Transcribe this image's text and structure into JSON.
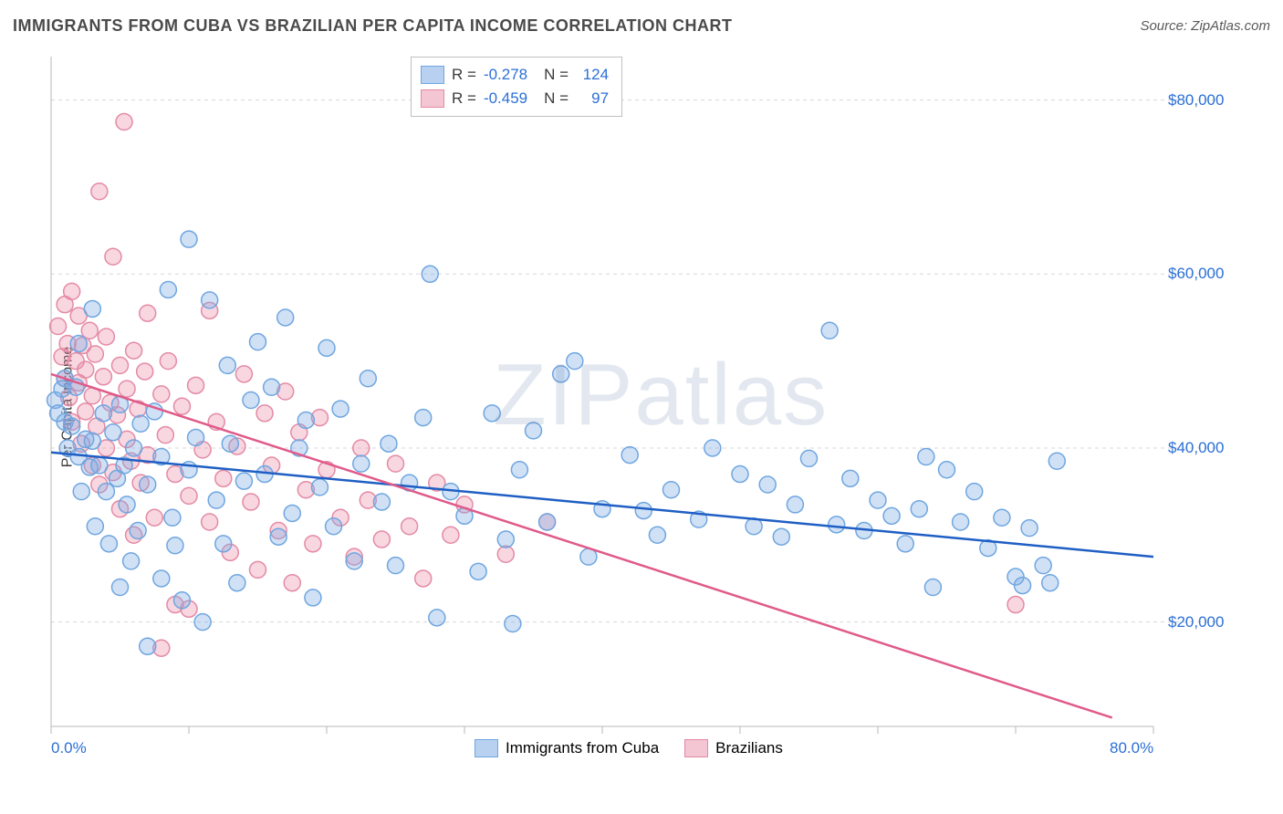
{
  "header": {
    "title": "IMMIGRANTS FROM CUBA VS BRAZILIAN PER CAPITA INCOME CORRELATION CHART",
    "source": "Source: ZipAtlas.com"
  },
  "watermark": "ZIPatlas",
  "chart": {
    "type": "scatter",
    "ylabel": "Per Capita Income",
    "xlim": [
      0,
      80
    ],
    "ylim": [
      8000,
      85000
    ],
    "x_ticks_pct": [
      0,
      10,
      20,
      30,
      40,
      50,
      60,
      70,
      80
    ],
    "x_tick_labels_visible": {
      "0": "0.0%",
      "80": "80.0%"
    },
    "y_gridlines": [
      20000,
      40000,
      60000,
      80000
    ],
    "y_tick_labels": {
      "20000": "$20,000",
      "40000": "$40,000",
      "60000": "$60,000",
      "80000": "$80,000"
    },
    "background_color": "#ffffff",
    "grid_color": "#d8d8d8",
    "grid_dash": "4,4",
    "axis_color": "#b8b8b8",
    "tick_color": "#b8b8b8",
    "axis_label_color": "#2b6fd6",
    "marker_radius": 9,
    "marker_stroke_width": 1.5,
    "trend_line_width": 2.5,
    "series": [
      {
        "name": "Immigrants from Cuba",
        "fill_color": "rgba(120,170,230,0.35)",
        "stroke_color": "#6fa6e0",
        "swatch_fill": "#b8d1f0",
        "swatch_border": "#6fa6e0",
        "trend_color": "#1f5fc4",
        "R": "-0.278",
        "N": "124",
        "trend": {
          "x1": 0,
          "y1": 39500,
          "x2": 80,
          "y2": 27500
        },
        "points": [
          [
            0.3,
            45500
          ],
          [
            0.5,
            44000
          ],
          [
            0.8,
            46800
          ],
          [
            1,
            43000
          ],
          [
            1,
            48000
          ],
          [
            1.2,
            40000
          ],
          [
            1.5,
            42500
          ],
          [
            1.8,
            47000
          ],
          [
            2,
            39000
          ],
          [
            2,
            52000
          ],
          [
            2.2,
            35000
          ],
          [
            2.5,
            41000
          ],
          [
            2.8,
            37800
          ],
          [
            3,
            40800
          ],
          [
            3,
            56000
          ],
          [
            3.2,
            31000
          ],
          [
            3.5,
            38000
          ],
          [
            3.8,
            44000
          ],
          [
            4,
            35000
          ],
          [
            4.2,
            29000
          ],
          [
            4.5,
            41800
          ],
          [
            4.8,
            36500
          ],
          [
            5,
            45000
          ],
          [
            5,
            24000
          ],
          [
            5.3,
            38000
          ],
          [
            5.5,
            33500
          ],
          [
            5.8,
            27000
          ],
          [
            6,
            40000
          ],
          [
            6.3,
            30500
          ],
          [
            6.5,
            42800
          ],
          [
            7,
            17200
          ],
          [
            7,
            35800
          ],
          [
            7.5,
            44200
          ],
          [
            8,
            25000
          ],
          [
            8,
            39000
          ],
          [
            8.5,
            58200
          ],
          [
            8.8,
            32000
          ],
          [
            9,
            28800
          ],
          [
            9.5,
            22500
          ],
          [
            10,
            64000
          ],
          [
            10,
            37500
          ],
          [
            10.5,
            41200
          ],
          [
            11,
            20000
          ],
          [
            11.5,
            57000
          ],
          [
            12,
            34000
          ],
          [
            12.5,
            29000
          ],
          [
            12.8,
            49500
          ],
          [
            13,
            40500
          ],
          [
            13.5,
            24500
          ],
          [
            14,
            36200
          ],
          [
            14.5,
            45500
          ],
          [
            15,
            52200
          ],
          [
            15.5,
            37000
          ],
          [
            16,
            47000
          ],
          [
            16.5,
            29800
          ],
          [
            17,
            55000
          ],
          [
            17.5,
            32500
          ],
          [
            18,
            40000
          ],
          [
            18.5,
            43200
          ],
          [
            19,
            22800
          ],
          [
            19.5,
            35500
          ],
          [
            20,
            51500
          ],
          [
            20.5,
            31000
          ],
          [
            21,
            44500
          ],
          [
            22,
            27000
          ],
          [
            22.5,
            38200
          ],
          [
            23,
            48000
          ],
          [
            24,
            33800
          ],
          [
            24.5,
            40500
          ],
          [
            25,
            26500
          ],
          [
            26,
            36000
          ],
          [
            27,
            43500
          ],
          [
            27.5,
            60000
          ],
          [
            28,
            20500
          ],
          [
            29,
            35000
          ],
          [
            30,
            32200
          ],
          [
            31,
            25800
          ],
          [
            32,
            44000
          ],
          [
            33,
            29500
          ],
          [
            33.5,
            19800
          ],
          [
            34,
            37500
          ],
          [
            35,
            42000
          ],
          [
            36,
            31500
          ],
          [
            37,
            48500
          ],
          [
            38,
            50000
          ],
          [
            39,
            27500
          ],
          [
            40,
            33000
          ],
          [
            42,
            39200
          ],
          [
            43,
            32800
          ],
          [
            44,
            30000
          ],
          [
            45,
            35200
          ],
          [
            47,
            31800
          ],
          [
            48,
            40000
          ],
          [
            50,
            37000
          ],
          [
            51,
            31000
          ],
          [
            52,
            35800
          ],
          [
            53,
            29800
          ],
          [
            54,
            33500
          ],
          [
            55,
            38800
          ],
          [
            56.5,
            53500
          ],
          [
            57,
            31200
          ],
          [
            58,
            36500
          ],
          [
            59,
            30500
          ],
          [
            60,
            34000
          ],
          [
            61,
            32200
          ],
          [
            62,
            29000
          ],
          [
            63,
            33000
          ],
          [
            63.5,
            39000
          ],
          [
            64,
            24000
          ],
          [
            65,
            37500
          ],
          [
            66,
            31500
          ],
          [
            67,
            35000
          ],
          [
            68,
            28500
          ],
          [
            69,
            32000
          ],
          [
            70,
            25200
          ],
          [
            70.5,
            24200
          ],
          [
            71,
            30800
          ],
          [
            72,
            26500
          ],
          [
            72.5,
            24500
          ],
          [
            73,
            38500
          ]
        ]
      },
      {
        "name": "Brazilians",
        "fill_color": "rgba(235,140,165,0.35)",
        "stroke_color": "#e48aa5",
        "swatch_fill": "#f4c5d2",
        "swatch_border": "#e48aa5",
        "trend_color": "#e05a8a",
        "R": "-0.459",
        "N": "97",
        "trend": {
          "x1": 0,
          "y1": 48500,
          "x2": 77,
          "y2": 9000
        },
        "points": [
          [
            0.5,
            54000
          ],
          [
            0.8,
            50500
          ],
          [
            1,
            56500
          ],
          [
            1,
            48000
          ],
          [
            1.2,
            52000
          ],
          [
            1.3,
            45800
          ],
          [
            1.5,
            58000
          ],
          [
            1.5,
            43000
          ],
          [
            1.8,
            50000
          ],
          [
            2,
            55200
          ],
          [
            2,
            47500
          ],
          [
            2.2,
            40500
          ],
          [
            2.3,
            51800
          ],
          [
            2.5,
            44200
          ],
          [
            2.5,
            49000
          ],
          [
            2.8,
            53500
          ],
          [
            3,
            46000
          ],
          [
            3,
            38000
          ],
          [
            3.2,
            50800
          ],
          [
            3.3,
            42500
          ],
          [
            3.5,
            69500
          ],
          [
            3.5,
            35800
          ],
          [
            3.8,
            48200
          ],
          [
            4,
            52800
          ],
          [
            4,
            40000
          ],
          [
            4.3,
            45200
          ],
          [
            4.5,
            37200
          ],
          [
            4.5,
            62000
          ],
          [
            4.8,
            43800
          ],
          [
            5,
            49500
          ],
          [
            5,
            33000
          ],
          [
            5.3,
            77500
          ],
          [
            5.5,
            41000
          ],
          [
            5.5,
            46800
          ],
          [
            5.8,
            38500
          ],
          [
            6,
            51200
          ],
          [
            6,
            30000
          ],
          [
            6.3,
            44500
          ],
          [
            6.5,
            36000
          ],
          [
            6.8,
            48800
          ],
          [
            7,
            55500
          ],
          [
            7,
            39200
          ],
          [
            7.5,
            32000
          ],
          [
            8,
            46200
          ],
          [
            8,
            17000
          ],
          [
            8.3,
            41500
          ],
          [
            8.5,
            50000
          ],
          [
            9,
            37000
          ],
          [
            9,
            22000
          ],
          [
            9.5,
            44800
          ],
          [
            10,
            34500
          ],
          [
            10,
            21500
          ],
          [
            10.5,
            47200
          ],
          [
            11,
            39800
          ],
          [
            11.5,
            31500
          ],
          [
            11.5,
            55800
          ],
          [
            12,
            43000
          ],
          [
            12.5,
            36500
          ],
          [
            13,
            28000
          ],
          [
            13.5,
            40200
          ],
          [
            14,
            48500
          ],
          [
            14.5,
            33800
          ],
          [
            15,
            26000
          ],
          [
            15.5,
            44000
          ],
          [
            16,
            38000
          ],
          [
            16.5,
            30500
          ],
          [
            17,
            46500
          ],
          [
            17.5,
            24500
          ],
          [
            18,
            41800
          ],
          [
            18.5,
            35200
          ],
          [
            19,
            29000
          ],
          [
            19.5,
            43500
          ],
          [
            20,
            37500
          ],
          [
            21,
            32000
          ],
          [
            22,
            27500
          ],
          [
            22.5,
            40000
          ],
          [
            23,
            34000
          ],
          [
            24,
            29500
          ],
          [
            25,
            38200
          ],
          [
            26,
            31000
          ],
          [
            27,
            25000
          ],
          [
            28,
            36000
          ],
          [
            29,
            30000
          ],
          [
            30,
            33500
          ],
          [
            33,
            27800
          ],
          [
            36,
            31500
          ],
          [
            70,
            22000
          ]
        ]
      }
    ],
    "legend_bottom": {
      "items": [
        {
          "label": "Immigrants from Cuba",
          "series": 0
        },
        {
          "label": "Brazilians",
          "series": 1
        }
      ]
    }
  }
}
